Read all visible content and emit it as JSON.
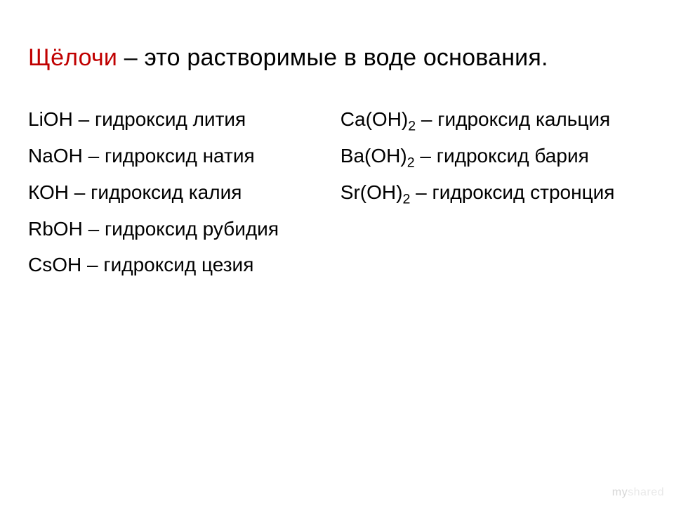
{
  "colors": {
    "background": "#ffffff",
    "text": "#000000",
    "term": "#c00000",
    "watermark_primary": "#d6d6d6",
    "watermark_secondary": "#e9e9e9"
  },
  "typography": {
    "font_family": "Arial",
    "heading_fontsize": 34,
    "body_fontsize": 28,
    "line_height": 1.85
  },
  "heading": {
    "term": "Щёлочи",
    "rest": " – это растворимые в воде основания."
  },
  "left_column": [
    {
      "formula_html": "LiOH",
      "name": "гидроксид лития"
    },
    {
      "formula_html": "NaOH",
      "name": "гидроксид натия"
    },
    {
      "formula_html": "КОН",
      "name": "гидроксид калия"
    },
    {
      "formula_html": "RbOH",
      "name": "гидроксид рубидия"
    },
    {
      "formula_html": "CsOH",
      "name": "гидроксид цезия"
    }
  ],
  "right_column": [
    {
      "formula_html": "Ca(OH)<sub>2</sub>",
      "name": "гидроксид кальция"
    },
    {
      "formula_html": "Ba(OH)<sub>2</sub>",
      "name": "гидроксид бария"
    },
    {
      "formula_html": "Sr(OH)<sub>2</sub>",
      "name": "гидроксид стронция"
    }
  ],
  "watermark": {
    "part1": "my",
    "part2": "shared"
  }
}
